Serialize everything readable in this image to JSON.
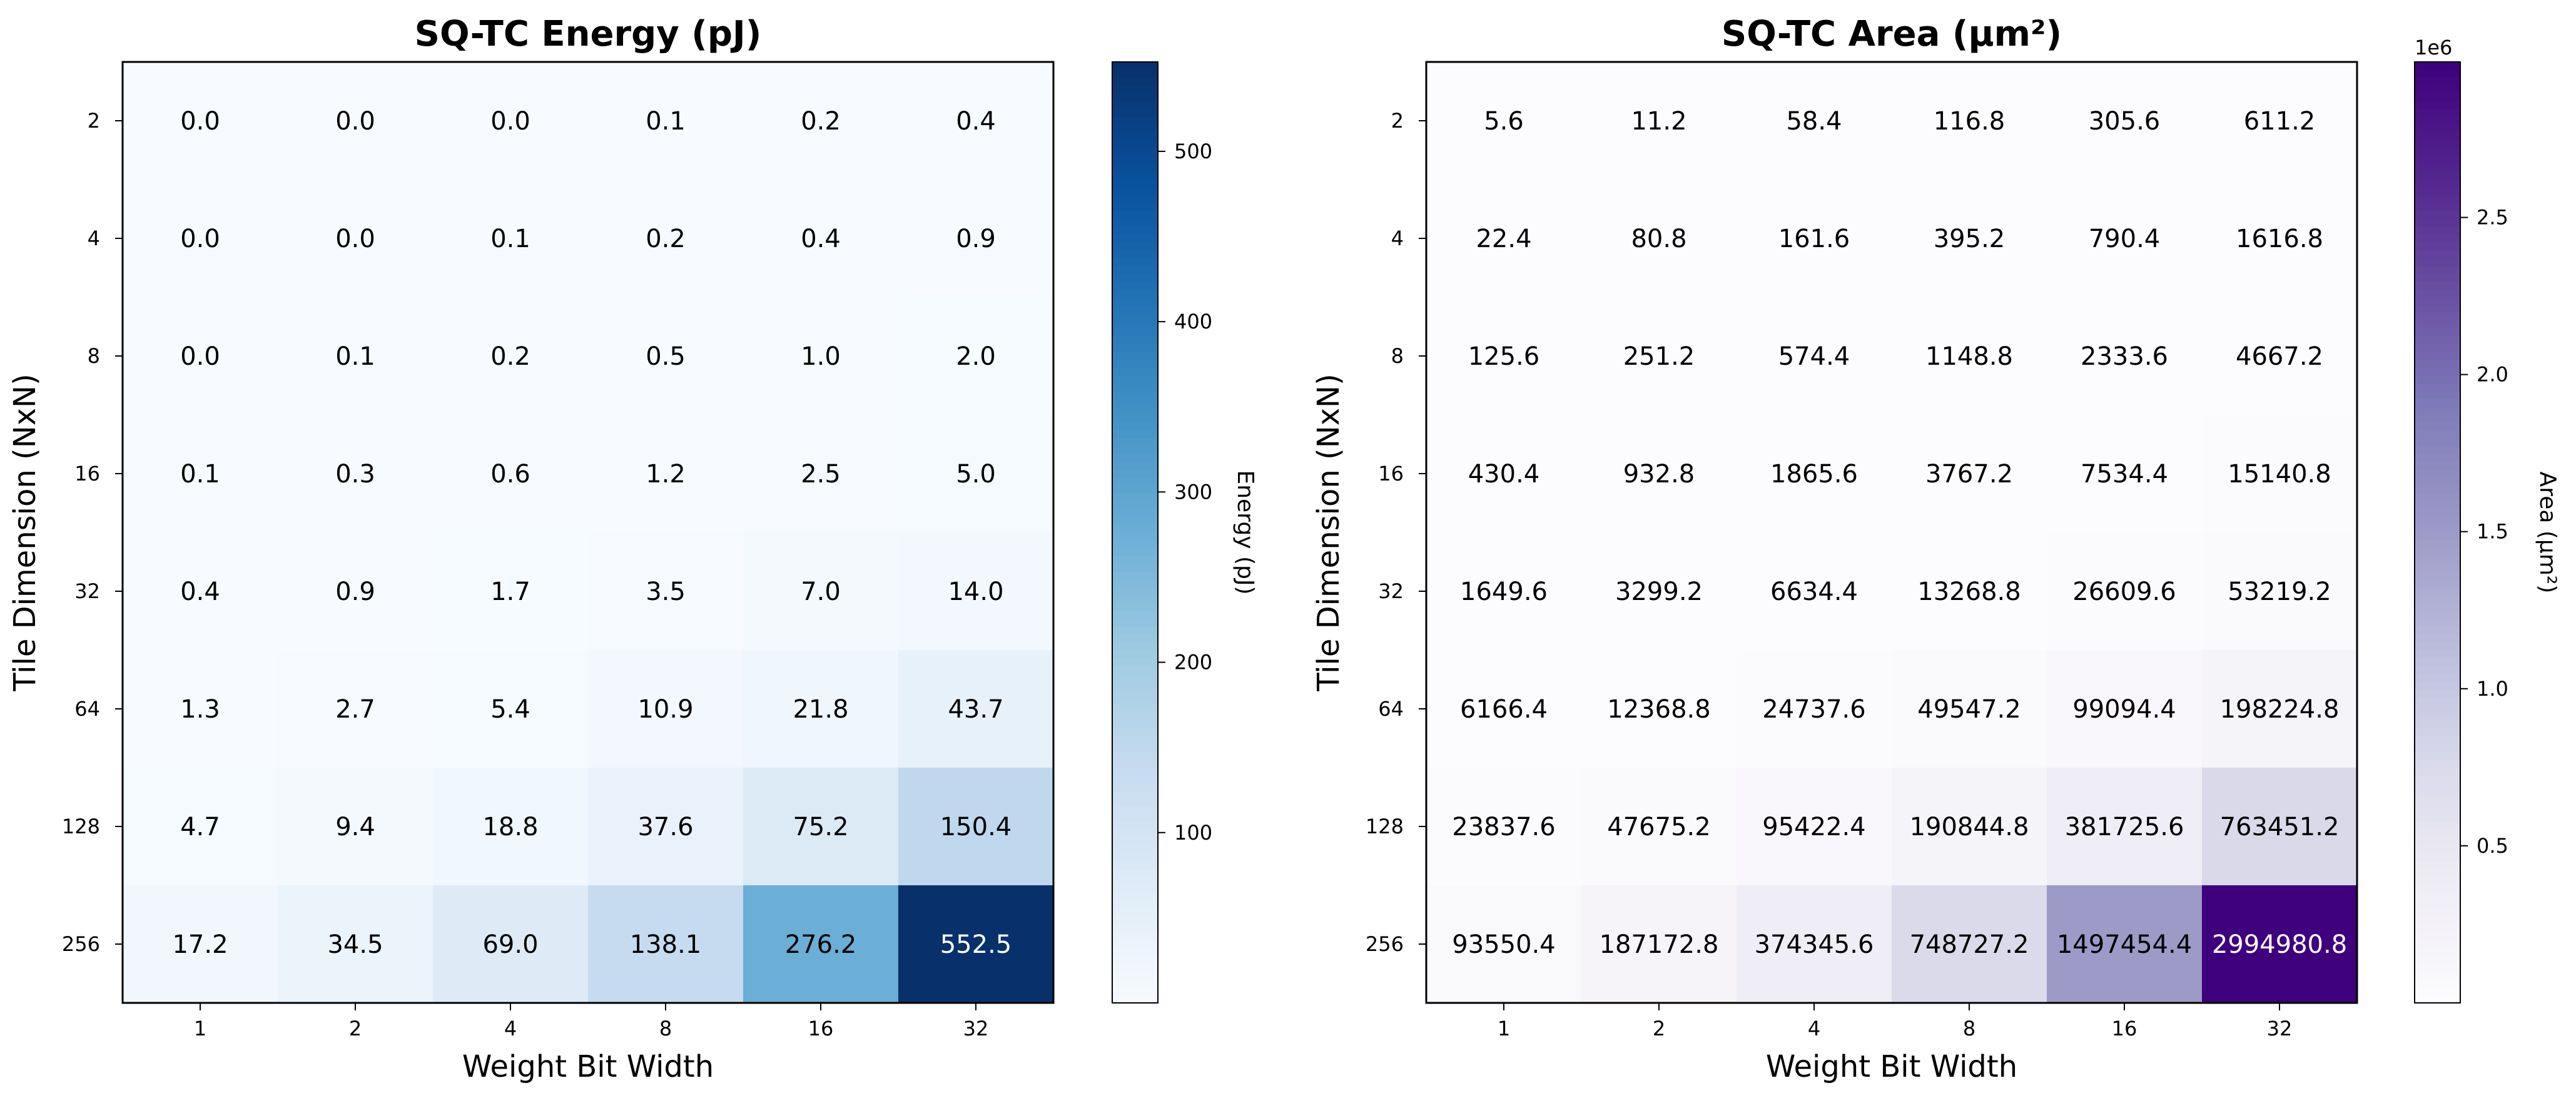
{
  "chart_data": [
    {
      "type": "heatmap",
      "title": "SQ-TC Energy (pJ)",
      "xlabel": "Weight Bit Width",
      "ylabel": "Tile Dimension (NxN)",
      "x": [
        "1",
        "2",
        "4",
        "8",
        "16",
        "32"
      ],
      "y": [
        "2",
        "4",
        "8",
        "16",
        "32",
        "64",
        "128",
        "256"
      ],
      "values": [
        [
          0.0,
          0.0,
          0.0,
          0.1,
          0.2,
          0.4
        ],
        [
          0.0,
          0.0,
          0.1,
          0.2,
          0.4,
          0.9
        ],
        [
          0.0,
          0.1,
          0.2,
          0.5,
          1.0,
          2.0
        ],
        [
          0.1,
          0.3,
          0.6,
          1.2,
          2.5,
          5.0
        ],
        [
          0.4,
          0.9,
          1.7,
          3.5,
          7.0,
          14.0
        ],
        [
          1.3,
          2.7,
          5.4,
          10.9,
          21.8,
          43.7
        ],
        [
          4.7,
          9.4,
          18.8,
          37.6,
          75.2,
          150.4
        ],
        [
          17.2,
          34.5,
          69.0,
          138.1,
          276.2,
          552.5
        ]
      ],
      "value_labels": [
        [
          "0.0",
          "0.0",
          "0.0",
          "0.1",
          "0.2",
          "0.4"
        ],
        [
          "0.0",
          "0.0",
          "0.1",
          "0.2",
          "0.4",
          "0.9"
        ],
        [
          "0.0",
          "0.1",
          "0.2",
          "0.5",
          "1.0",
          "2.0"
        ],
        [
          "0.1",
          "0.3",
          "0.6",
          "1.2",
          "2.5",
          "5.0"
        ],
        [
          "0.4",
          "0.9",
          "1.7",
          "3.5",
          "7.0",
          "14.0"
        ],
        [
          "1.3",
          "2.7",
          "5.4",
          "10.9",
          "21.8",
          "43.7"
        ],
        [
          "4.7",
          "9.4",
          "18.8",
          "37.6",
          "75.2",
          "150.4"
        ],
        [
          "17.2",
          "34.5",
          "69.0",
          "138.1",
          "276.2",
          "552.5"
        ]
      ],
      "colorbar": {
        "label": "Energy (pJ)",
        "colormap": "Blues",
        "vmin": 0.0,
        "vmax": 552.5,
        "ticks": [
          100,
          200,
          300,
          400,
          500
        ],
        "tick_labels": [
          "100",
          "200",
          "300",
          "400",
          "500"
        ],
        "offset_text": ""
      },
      "colors": [
        "#f7fbff",
        "#deebf7",
        "#c6dbef",
        "#9ecae1",
        "#6baed6",
        "#4292c6",
        "#2171b5",
        "#08519c",
        "#08306b"
      ]
    },
    {
      "type": "heatmap",
      "title": "SQ-TC Area (μm²)",
      "xlabel": "Weight Bit Width",
      "ylabel": "Tile Dimension (NxN)",
      "x": [
        "1",
        "2",
        "4",
        "8",
        "16",
        "32"
      ],
      "y": [
        "2",
        "4",
        "8",
        "16",
        "32",
        "64",
        "128",
        "256"
      ],
      "values": [
        [
          5.6,
          11.2,
          58.4,
          116.8,
          305.6,
          611.2
        ],
        [
          22.4,
          80.8,
          161.6,
          395.2,
          790.4,
          1616.8
        ],
        [
          125.6,
          251.2,
          574.4,
          1148.8,
          2333.6,
          4667.2
        ],
        [
          430.4,
          932.8,
          1865.6,
          3767.2,
          7534.4,
          15140.8
        ],
        [
          1649.6,
          3299.2,
          6634.4,
          13268.8,
          26609.6,
          53219.2
        ],
        [
          6166.4,
          12368.8,
          24737.6,
          49547.2,
          99094.4,
          198224.8
        ],
        [
          23837.6,
          47675.2,
          95422.4,
          190844.8,
          381725.6,
          763451.2
        ],
        [
          93550.4,
          187172.8,
          374345.6,
          748727.2,
          1497454.4,
          2994980.8
        ]
      ],
      "value_labels": [
        [
          "5.6",
          "11.2",
          "58.4",
          "116.8",
          "305.6",
          "611.2"
        ],
        [
          "22.4",
          "80.8",
          "161.6",
          "395.2",
          "790.4",
          "1616.8"
        ],
        [
          "125.6",
          "251.2",
          "574.4",
          "1148.8",
          "2333.6",
          "4667.2"
        ],
        [
          "430.4",
          "932.8",
          "1865.6",
          "3767.2",
          "7534.4",
          "15140.8"
        ],
        [
          "1649.6",
          "3299.2",
          "6634.4",
          "13268.8",
          "26609.6",
          "53219.2"
        ],
        [
          "6166.4",
          "12368.8",
          "24737.6",
          "49547.2",
          "99094.4",
          "198224.8"
        ],
        [
          "23837.6",
          "47675.2",
          "95422.4",
          "190844.8",
          "381725.6",
          "763451.2"
        ],
        [
          "93550.4",
          "187172.8",
          "374345.6",
          "748727.2",
          "1497454.4",
          "2994980.8"
        ]
      ],
      "colorbar": {
        "label": "Area (μm²)",
        "colormap": "Purples",
        "vmin": 5.6,
        "vmax": 2994980.8,
        "ticks": [
          500000,
          1000000,
          1500000,
          2000000,
          2500000
        ],
        "tick_labels": [
          "0.5",
          "1.0",
          "1.5",
          "2.0",
          "2.5"
        ],
        "offset_text": "1e6"
      },
      "colors": [
        "#fcfbfd",
        "#efedf5",
        "#dadaeb",
        "#bcbddc",
        "#9e9ac8",
        "#807dba",
        "#6a51a3",
        "#54278f",
        "#3f007d"
      ]
    }
  ]
}
